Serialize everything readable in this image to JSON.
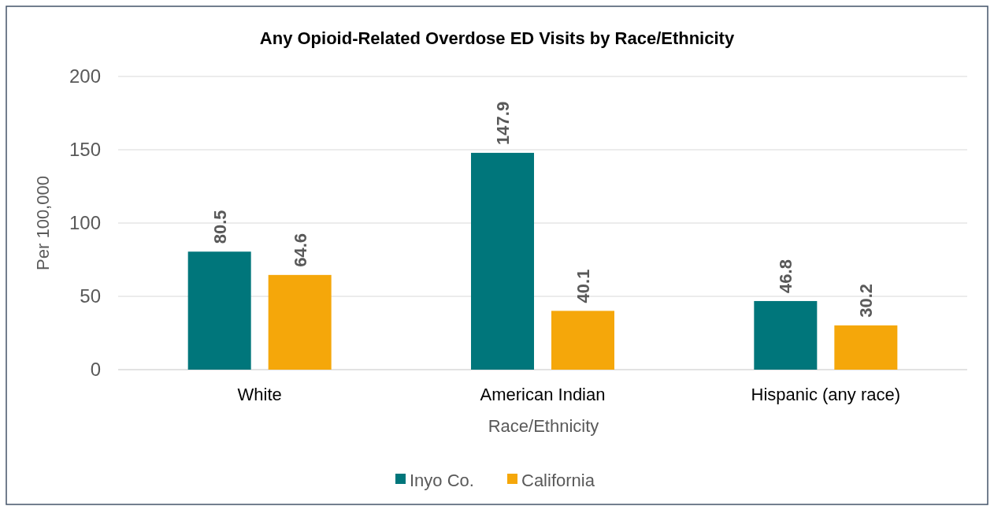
{
  "chart_data": {
    "type": "bar",
    "title": "Any Opioid-Related Overdose ED Visits by Race/Ethnicity",
    "xlabel": "Race/Ethnicity",
    "ylabel": "Per 100,000",
    "categories": [
      "White",
      "American Indian",
      "Hispanic (any race)"
    ],
    "series": [
      {
        "name": "Inyo Co.",
        "color": "#00767b",
        "values": [
          80.5,
          147.9,
          46.8
        ]
      },
      {
        "name": "California",
        "color": "#f5a70a",
        "values": [
          64.6,
          40.1,
          30.2
        ]
      }
    ],
    "ylim": [
      0,
      200
    ],
    "yticks": [
      0,
      50,
      100,
      150,
      200
    ],
    "grid": "y",
    "legend": "bottom",
    "data_labels": true
  }
}
